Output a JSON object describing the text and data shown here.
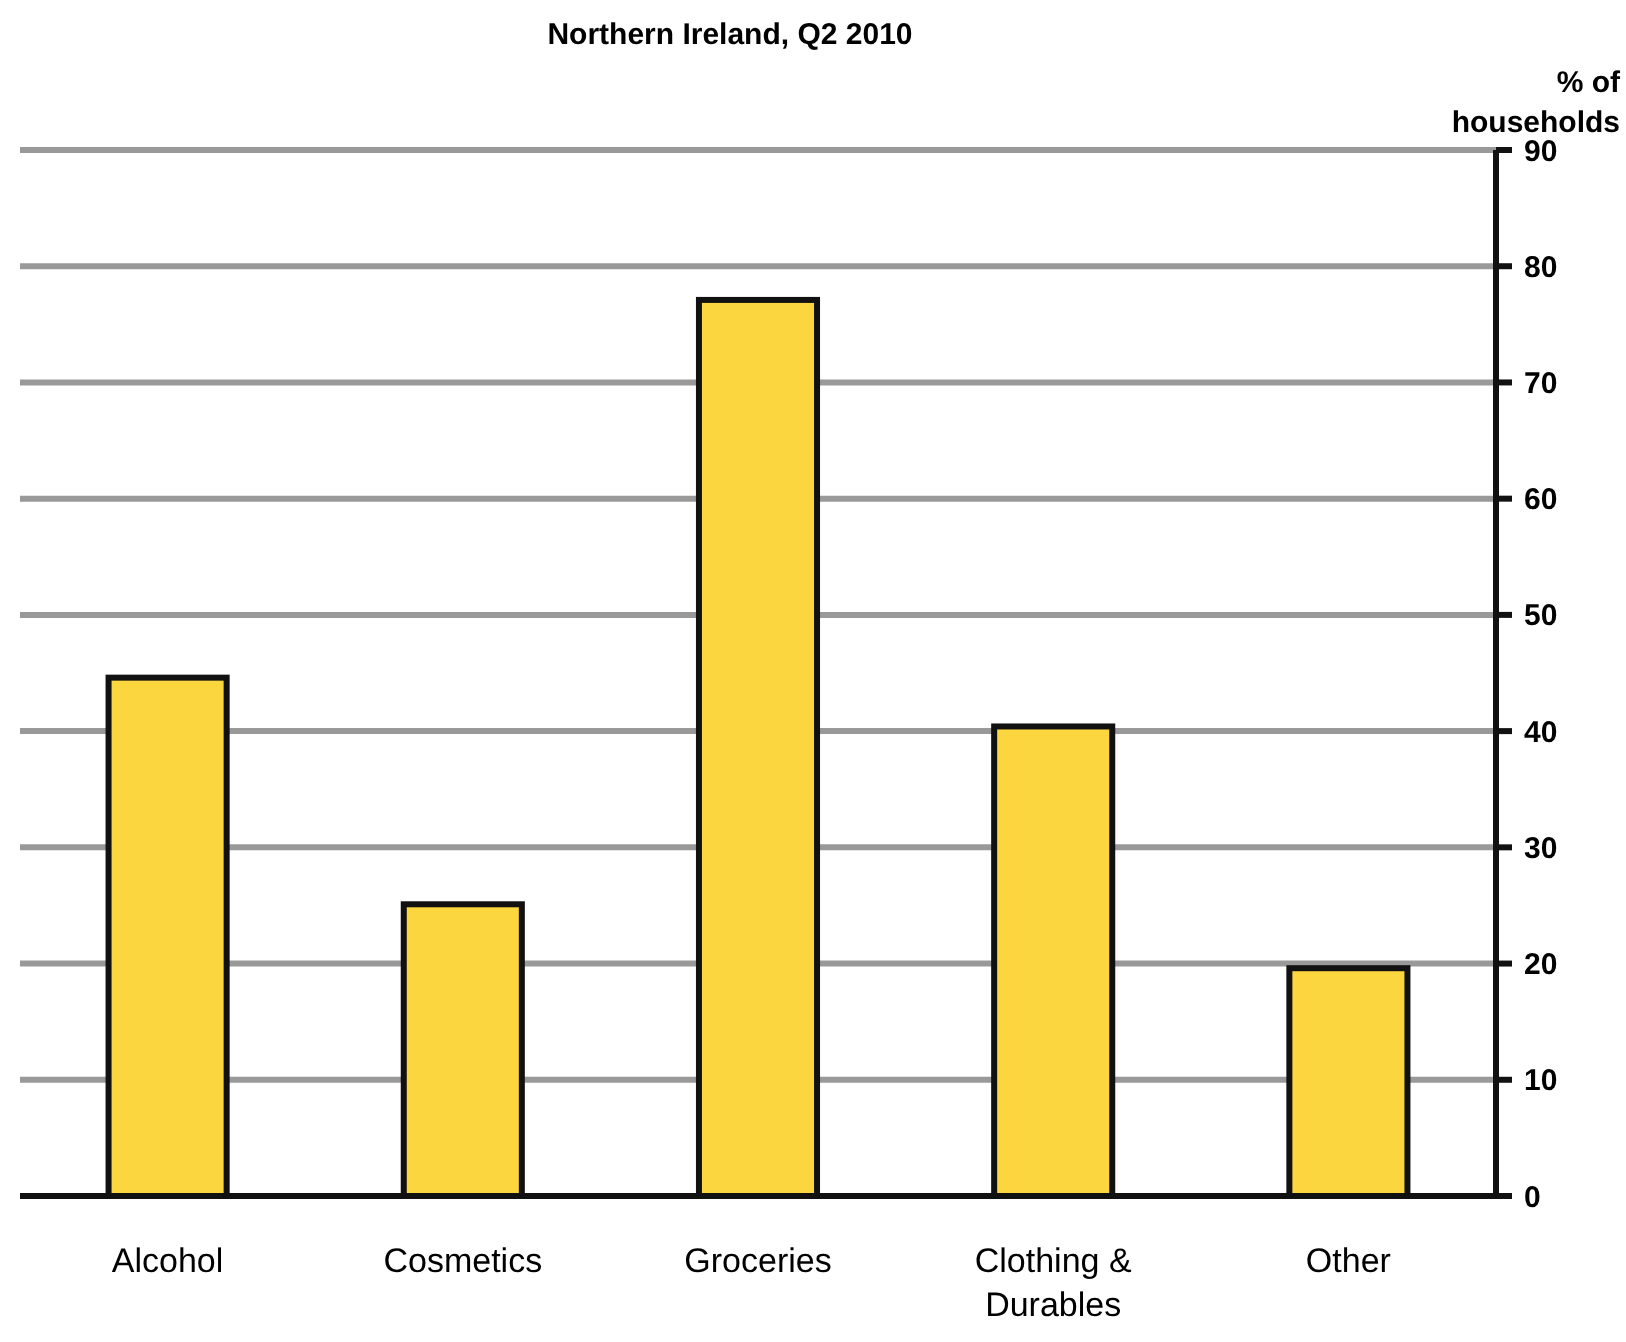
{
  "chart_data": {
    "type": "bar",
    "title": "Northern Ireland, Q2 2010",
    "ylabel": "% of households",
    "categories": [
      "Alcohol",
      "Cosmetics",
      "Groceries",
      "Clothing & Durables",
      "Other"
    ],
    "values": [
      44.6,
      25.1,
      77.1,
      40.4,
      19.6
    ],
    "color": "#fcd63f",
    "ylim": [
      0,
      90
    ],
    "yticks": [
      0,
      10,
      20,
      30,
      40,
      50,
      60,
      70,
      80,
      90
    ],
    "grid": "y"
  }
}
